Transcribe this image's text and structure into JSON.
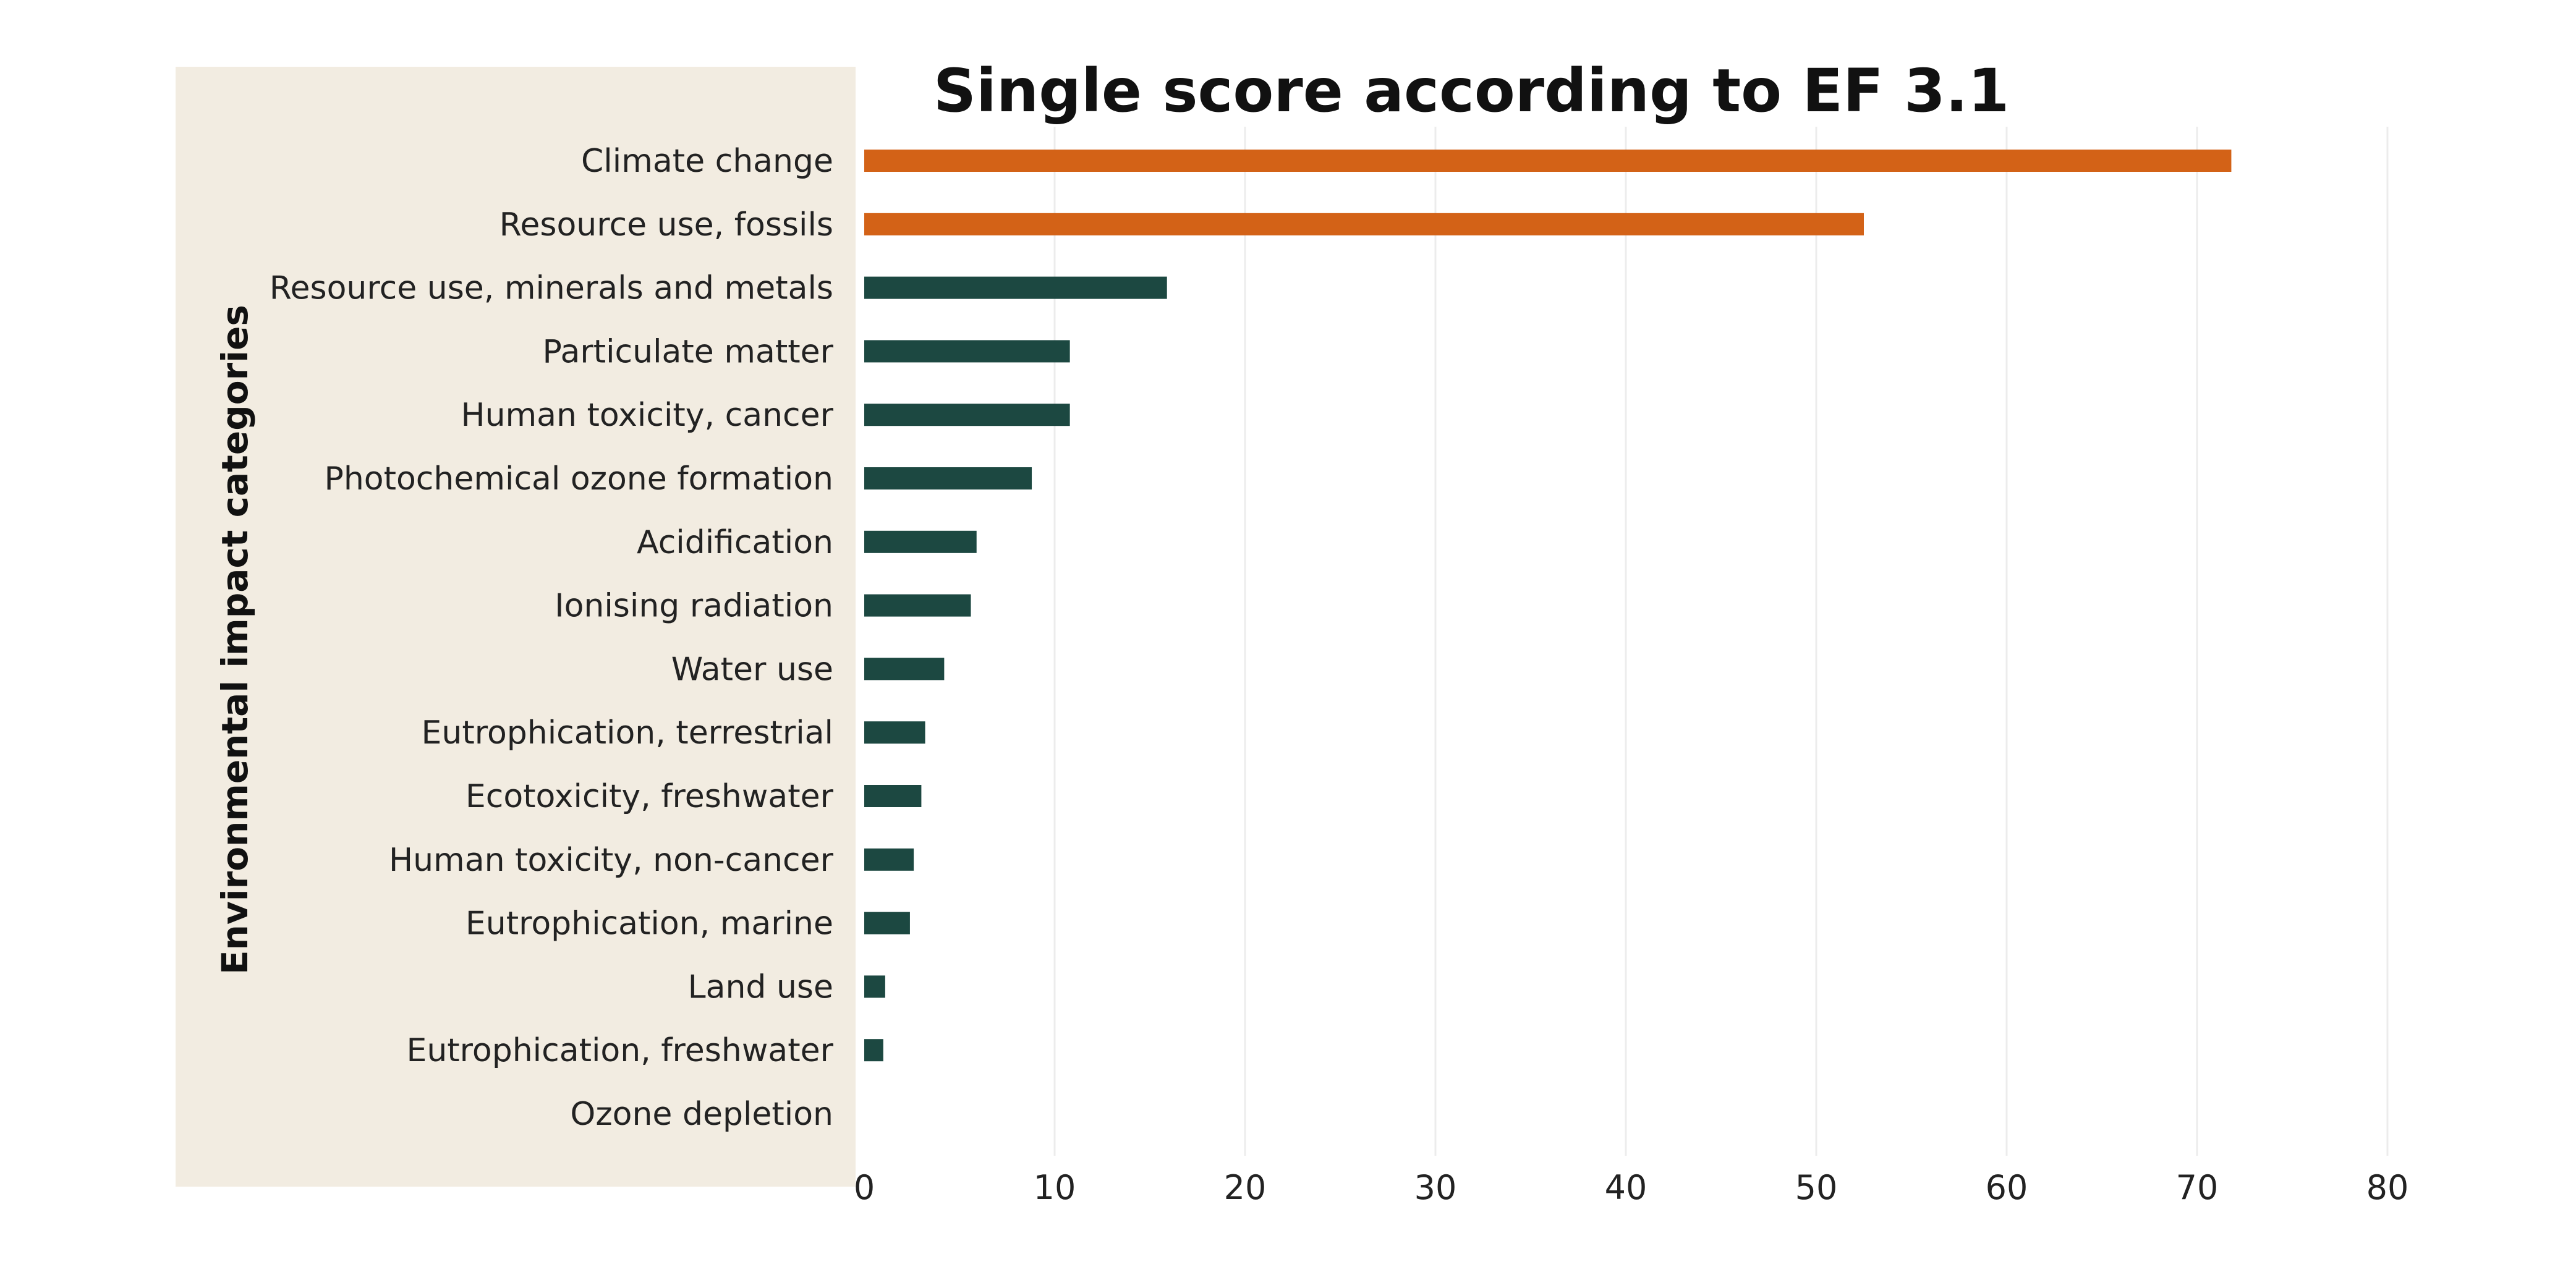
{
  "chart_data": {
    "type": "bar",
    "orientation": "horizontal",
    "title": "Single score according to EF 3.1",
    "ylabel": "Environmental impact categories",
    "xlabel": "",
    "categories": [
      "Climate change",
      "Resource use, fossils",
      "Resource use, minerals and metals",
      "Particulate matter",
      "Human toxicity, cancer",
      "Photochemical ozone formation",
      "Acidification",
      "Ionising radiation",
      "Water use",
      "Eutrophication, terrestrial",
      "Ecotoxicity, freshwater",
      "Human toxicity, non-cancer",
      "Eutrophication, marine",
      "Land use",
      "Eutrophication, freshwater",
      "Ozone depletion"
    ],
    "values": [
      71.8,
      52.5,
      15.9,
      10.8,
      10.8,
      8.8,
      5.9,
      5.6,
      4.2,
      3.2,
      3.0,
      2.6,
      2.4,
      1.1,
      1.0,
      0.0
    ],
    "xlim": [
      0,
      80
    ],
    "x_ticks": [
      "0",
      "10",
      "20",
      "30",
      "40",
      "50",
      "60",
      "70",
      "80"
    ],
    "grid": "vertical",
    "legend": "none",
    "colors": {
      "highlight": "#D36217",
      "default": "#1C4841",
      "label_panel": "#F2ECE1"
    },
    "highlighted_categories": [
      "Climate change",
      "Resource use, fossils"
    ]
  }
}
